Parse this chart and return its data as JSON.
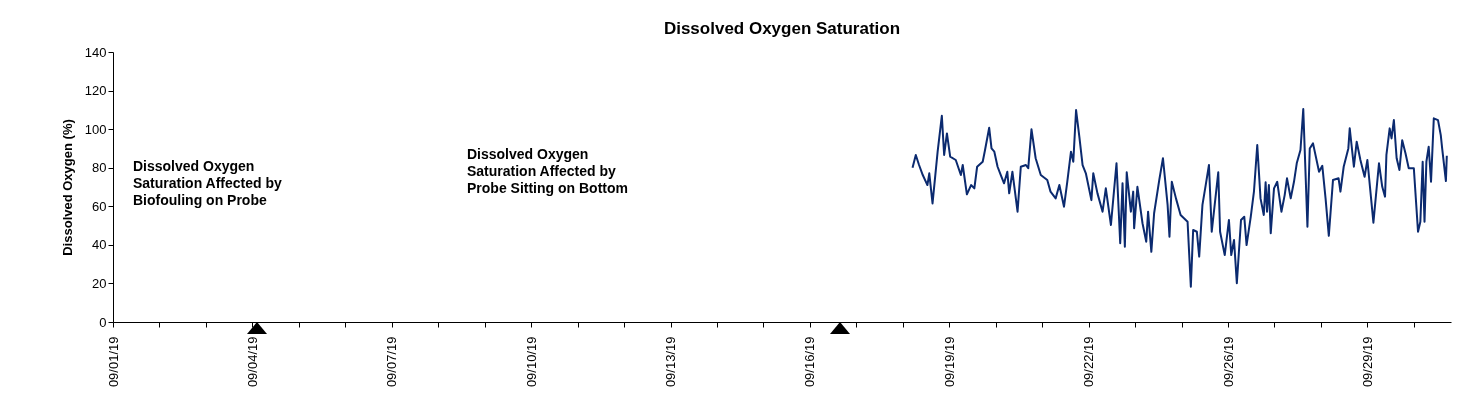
{
  "chart_data": {
    "type": "line",
    "title": "Dissolved Oxygen Saturation",
    "ylabel": "Dissolved Oxygen (%)",
    "xlim": [
      "--09-01",
      "--09-29T19:12"
    ],
    "ylim": [
      0,
      140
    ],
    "yticks": [
      0,
      20,
      40,
      60,
      80,
      100,
      120,
      140
    ],
    "xticks": [
      {
        "value": "--09-01",
        "label": "09/01/19"
      },
      {
        "value": "--09-02",
        "label": null
      },
      {
        "value": "--09-03",
        "label": null
      },
      {
        "value": "--09-04",
        "label": "09/04/19"
      },
      {
        "value": "--09-05",
        "label": null
      },
      {
        "value": "--09-06",
        "label": null
      },
      {
        "value": "--09-07",
        "label": "09/07/19"
      },
      {
        "value": "--09-08",
        "label": null
      },
      {
        "value": "--09-09",
        "label": null
      },
      {
        "value": "--09-10",
        "label": "09/10/19"
      },
      {
        "value": "--09-11",
        "label": null
      },
      {
        "value": "--09-12",
        "label": null
      },
      {
        "value": "--09-13",
        "label": "09/13/19"
      },
      {
        "value": "--09-14",
        "label": null
      },
      {
        "value": "--09-15",
        "label": null
      },
      {
        "value": "--09-16",
        "label": "09/16/19"
      },
      {
        "value": "--09-17",
        "label": null
      },
      {
        "value": "--09-18",
        "label": null
      },
      {
        "value": "--09-19",
        "label": "09/19/19"
      },
      {
        "value": "--09-20",
        "label": null
      },
      {
        "value": "--09-21",
        "label": null
      },
      {
        "value": "--09-22",
        "label": "09/22/19"
      },
      {
        "value": "--09-23",
        "label": null
      },
      {
        "value": "--09-24",
        "label": null
      },
      {
        "value": "--09-25",
        "label": "09/26/19"
      },
      {
        "value": "--09-26",
        "label": null
      },
      {
        "value": "--09-27",
        "label": null
      },
      {
        "value": "--09-28",
        "label": "09/29/19"
      },
      {
        "value": "--09-29",
        "label": null
      }
    ],
    "annotations": [
      "Dissolved Oxygen Saturation Affected by Biofouling on Probe",
      "Dissolved Oxygen Saturation Affected by Probe Sitting on Bottom"
    ],
    "series": [
      {
        "color": "#0b2a6f",
        "x": [
          "--09-18T05:02",
          "--09-18T06:43",
          "--09-18T08:24",
          "--09-18T10:19",
          "--09-18T12:43",
          "--09-18T13:41",
          "--09-18T15:22",
          "--09-18T18:00",
          "--09-18T20:10",
          "--09-18T21:22",
          "--09-18T22:48",
          "--09-19T00:29",
          "--09-19T03:22",
          "--09-19T06:00",
          "--09-19T06:58",
          "--09-19T09:07",
          "--09-19T11:17",
          "--09-19T12:58",
          "--09-19T14:24",
          "--09-19T17:17",
          "--09-19T18:29",
          "--09-19T20:38",
          "--09-19T21:50",
          "--09-19T23:17",
          "--09-20T00:58",
          "--09-20T02:38",
          "--09-20T04:19",
          "--09-20T06:00",
          "--09-20T06:58",
          "--09-20T08:38",
          "--09-20T11:17",
          "--09-20T12:58",
          "--09-20T15:36",
          "--09-20T16:48",
          "--09-20T18:29",
          "--09-20T20:38",
          "--09-20T23:17",
          "--09-21T02:38",
          "--09-21T04:19",
          "--09-21T06:58",
          "--09-21T08:53",
          "--09-21T11:17",
          "--09-21T12:58",
          "--09-21T14:53",
          "--09-21T16:05",
          "--09-21T17:31",
          "--09-21T19:12",
          "--09-21T20:53",
          "--09-21T22:34",
          "--09-22T01:26",
          "--09-22T02:24",
          "--09-22T04:34",
          "--09-22T07:12",
          "--09-22T08:53",
          "--09-22T11:31",
          "--09-22T14:24",
          "--09-22T16:19",
          "--09-22T17:31",
          "--09-22T18:43",
          "--09-22T19:41",
          "--09-22T21:50",
          "--09-22T23:02",
          "--09-22T23:31",
          "--09-23T01:12",
          "--09-23T03:50",
          "--09-23T05:46",
          "--09-23T06:43",
          "--09-23T08:24",
          "--09-23T09:50",
          "--09-23T12:29",
          "--09-23T14:24",
          "--09-23T16:48",
          "--09-23T17:46",
          "--09-23T18:58",
          "--09-23T21:07",
          "--09-23T23:31",
          "--09-24T03:07",
          "--09-24T04:48",
          "--09-24T06:00",
          "--09-24T07:55",
          "--09-24T09:07",
          "--09-24T10:48",
          "--09-24T12:29",
          "--09-24T14:10",
          "--09-24T15:36",
          "--09-24T18:58",
          "--09-24T19:55",
          "--09-24T22:19",
          "--09-25T00:29",
          "--09-25T01:41",
          "--09-25T03:07",
          "--09-25T04:34",
          "--09-25T06:43",
          "--09-25T08:24",
          "--09-25T09:36",
          "--09-25T11:46",
          "--09-25T13:26",
          "--09-25T15:07",
          "--09-25T16:48",
          "--09-25T18:29",
          "--09-25T19:26",
          "--09-25T20:10",
          "--09-25T21:07",
          "--09-25T22:05",
          "--09-25T23:46",
          "--09-26T01:26",
          "--09-26T03:36",
          "--09-26T05:17",
          "--09-26T06:29",
          "--09-26T08:24",
          "--09-26T10:05",
          "--09-26T11:31",
          "--09-26T13:26",
          "--09-26T14:53",
          "--09-26T17:02",
          "--09-26T18:14",
          "--09-26T19:55",
          "--09-26T23:02",
          "--09-27T00:43",
          "--09-27T02:24",
          "--09-27T04:05",
          "--09-27T06:14",
          "--09-27T09:07",
          "--09-27T10:05",
          "--09-27T11:46",
          "--09-27T14:10",
          "--09-27T14:53",
          "--09-27T17:02",
          "--09-27T18:29",
          "--09-27T20:24",
          "--09-27T22:34",
          "--09-28T00:00",
          "--09-28T03:07",
          "--09-28T06:00",
          "--09-28T07:41",
          "--09-28T09:07",
          "--09-28T09:50",
          "--09-28T11:31",
          "--09-28T12:29",
          "--09-28T13:41",
          "--09-28T15:07",
          "--09-28T16:34",
          "--09-28T18:00",
          "--09-28T19:41",
          "--09-28T21:22",
          "--09-29T00:00",
          "--09-29T02:10",
          "--09-29T03:22",
          "--09-29T04:34",
          "--09-29T05:31",
          "--09-29T06:29",
          "--09-29T07:41",
          "--09-29T08:53",
          "--09-29T10:19",
          "--09-29T12:29",
          "--09-29T13:55",
          "--09-29T14:38",
          "--09-29T16:34",
          "--09-29T17:02"
        ],
        "values": [
          80.0,
          86.6,
          81.4,
          76.2,
          71.0,
          77.1,
          61.5,
          88.3,
          106.9,
          86.6,
          97.8,
          85.7,
          84.0,
          76.2,
          81.4,
          66.2,
          71.0,
          69.3,
          80.5,
          83.1,
          89.2,
          100.7,
          90.0,
          88.3,
          80.5,
          76.2,
          71.9,
          77.9,
          66.7,
          77.9,
          57.2,
          80.5,
          81.4,
          79.7,
          99.9,
          84.9,
          76.2,
          73.6,
          67.6,
          64.1,
          71.0,
          59.8,
          72.7,
          88.3,
          83.1,
          109.9,
          96.1,
          81.4,
          77.1,
          63.2,
          77.1,
          66.7,
          57.2,
          69.3,
          50.3,
          82.3,
          40.8,
          71.9,
          39.0,
          77.6,
          57.2,
          67.6,
          48.6,
          70.1,
          51.2,
          41.6,
          57.2,
          36.4,
          56.4,
          73.6,
          84.9,
          60.7,
          44.2,
          72.7,
          64.1,
          55.5,
          52.0,
          18.3,
          47.7,
          46.8,
          33.9,
          60.7,
          71.0,
          81.4,
          46.8,
          77.6,
          46.8,
          34.7,
          52.9,
          34.7,
          42.5,
          20.1,
          52.9,
          54.6,
          39.9,
          54.6,
          67.9,
          91.8,
          64.1,
          55.5,
          72.4,
          57.2,
          71.0,
          46.0,
          69.3,
          72.7,
          57.2,
          65.8,
          74.5,
          64.1,
          72.7,
          82.3,
          89.2,
          110.4,
          49.4,
          90.0,
          92.6,
          77.9,
          81.0,
          64.1,
          44.7,
          73.6,
          74.5,
          67.6,
          80.5,
          90.0,
          100.4,
          80.5,
          93.5,
          84.0,
          75.3,
          84.0,
          51.5,
          82.3,
          70.1,
          65.0,
          86.6,
          100.4,
          95.2,
          104.7,
          84.9,
          78.8,
          94.3,
          87.5,
          79.7,
          79.7,
          46.8,
          52.0,
          83.1,
          52.0,
          83.1,
          90.9,
          72.7,
          105.6,
          104.7,
          96.9,
          90.0,
          73.1,
          86.2
        ]
      }
    ]
  }
}
